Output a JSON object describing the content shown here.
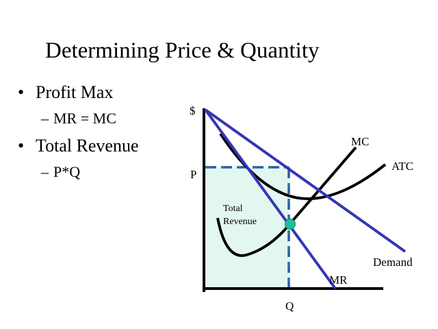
{
  "title": "Determining Price & Quantity",
  "bullets": [
    {
      "text": "Profit Max",
      "sub": "MR = MC"
    },
    {
      "text": "Total Revenue",
      "sub": "P*Q"
    }
  ],
  "bullet_glyph": "•",
  "sub_glyph": "–",
  "diagram": {
    "y_axis_label": "$",
    "price_label": "P",
    "quantity_label": "Q",
    "region_label_line1": "Total",
    "region_label_line2": "Revenue",
    "curves": {
      "mc": "MC",
      "atc": "ATC",
      "demand": "Demand",
      "mr": "MR"
    }
  },
  "colors": {
    "axis": "#000000",
    "demand_mr": "#3535b5",
    "cost_curves": "#000000",
    "revenue_fill": "#e3f7f1",
    "revenue_border": "#2a5aa8",
    "revenue_dash_accent": "#1e8f86",
    "intersection_point": "#19c29a"
  }
}
